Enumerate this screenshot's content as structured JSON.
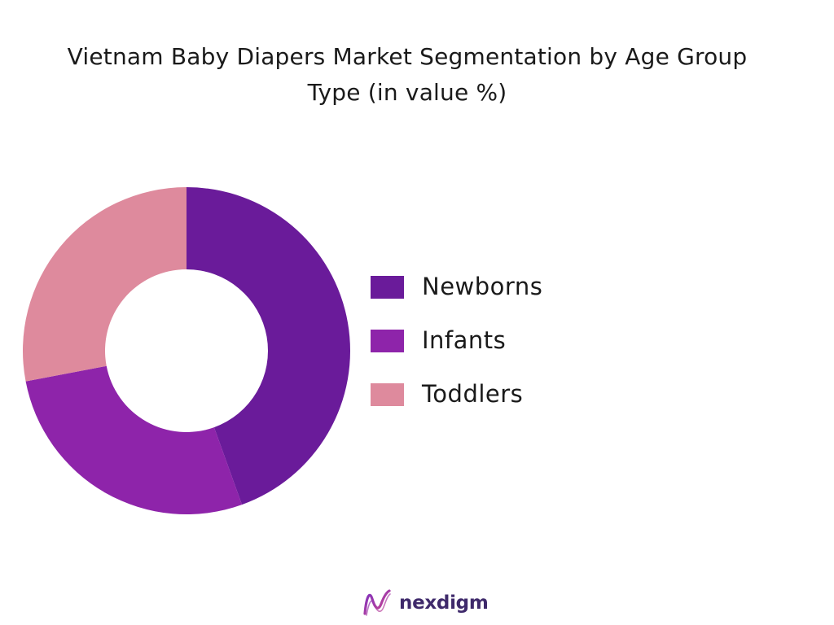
{
  "chart_data": {
    "type": "pie",
    "variant": "donut",
    "title_lines": [
      "Vietnam  Baby Diapers Market Segmentation by Age Group",
      "Type (in value %)"
    ],
    "categories": [
      "Newborns",
      "Infants",
      "Toddlers"
    ],
    "values": [
      44.5,
      27.5,
      28.0
    ],
    "unit": "%",
    "colors": [
      "#6a1b9a",
      "#8e24aa",
      "#de8a9d"
    ],
    "start_angle": "12 o'clock",
    "direction": "clockwise",
    "legend_placement": "right",
    "data_labels": false
  },
  "branding": {
    "name": "nexdigm",
    "icon": "nexdigm-logo-icon",
    "color": "#3f2a6b"
  }
}
